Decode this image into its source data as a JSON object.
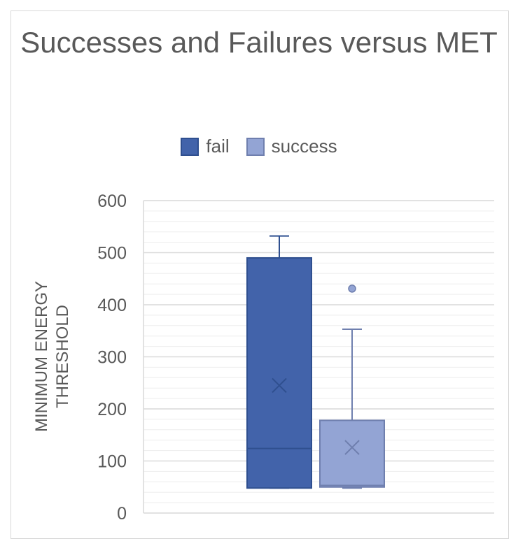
{
  "chart_data": {
    "type": "box",
    "title": "Successes and Failures versus MET",
    "ylabel": "MINIMUM ENERGY THRESHOLD",
    "xlabel": "",
    "ylim": [
      0,
      600
    ],
    "yticks": [
      "0",
      "100",
      "200",
      "300",
      "400",
      "500",
      "600"
    ],
    "grid": true,
    "legend_position": "top",
    "series": [
      {
        "name": "fail",
        "color": "#4263aa",
        "border": "#2f4f8f",
        "min": 48,
        "q1": 48,
        "median": 124,
        "q3": 490,
        "max": 532,
        "mean": 245,
        "outliers": []
      },
      {
        "name": "success",
        "color": "#93a4d4",
        "border": "#6f7fae",
        "min": 48,
        "q1": 50,
        "median": 53,
        "q3": 178,
        "max": 353,
        "mean": 126,
        "outliers": [
          431
        ]
      }
    ]
  }
}
